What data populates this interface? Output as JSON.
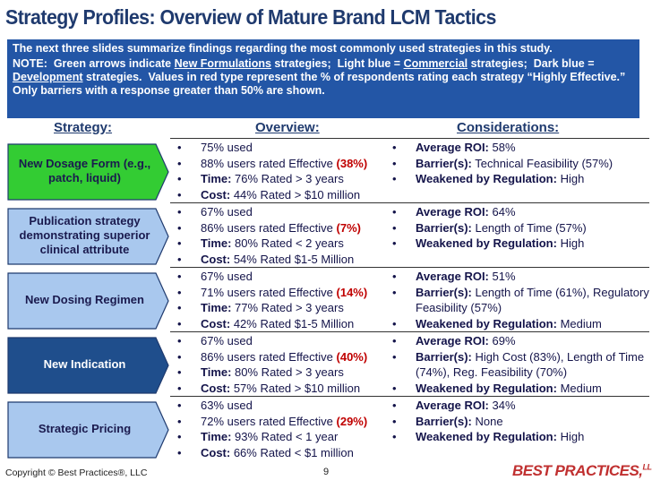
{
  "title": "Strategy Profiles: Overview of Mature Brand LCM Tactics",
  "intro": {
    "summary": "The next three slides summarize findings regarding the most commonly used strategies in this study.",
    "note": [
      {
        "text": "NOTE:  Green arrows indicate "
      },
      {
        "text": "New Formulations",
        "style": "u"
      },
      {
        "text": " strategies;  Light blue = "
      },
      {
        "text": "Commercial",
        "style": "u"
      },
      {
        "text": " strategies;  Dark blue = "
      },
      {
        "text": "Development",
        "style": "u"
      },
      {
        "text": " strategies.  Values in red type represent the % of respondents rating each strategy “Highly Effective.”  Only barriers with a response greater than 50% are shown."
      }
    ]
  },
  "columns": [
    "Strategy:",
    "Overview:",
    "Considerations:"
  ],
  "rows": [
    {
      "strategy": "New Dosage Form (e.g., patch, liquid)",
      "fill": "#33cc33",
      "text_color": "#1a1a4e",
      "overview": [
        [
          {
            "text": "75% used"
          }
        ],
        [
          {
            "text": "88% users rated Effective "
          },
          {
            "text": "(38%)",
            "style": "r"
          }
        ],
        [
          {
            "text": "Time:",
            "style": "b"
          },
          {
            "text": " 76% Rated > 3 years"
          }
        ],
        [
          {
            "text": "Cost:",
            "style": "b"
          },
          {
            "text": " 44% Rated > $10 million"
          }
        ]
      ],
      "considerations": [
        [
          {
            "text": "Average ROI:",
            "style": "b"
          },
          {
            "text": " 58%"
          }
        ],
        [
          {
            "text": "Barrier(s):",
            "style": "b"
          },
          {
            "text": " Technical Feasibility (57%)"
          }
        ],
        [
          {
            "text": "Weakened by Regulation:",
            "style": "b"
          },
          {
            "text": " High"
          }
        ]
      ]
    },
    {
      "strategy": "Publication strategy demonstrating superior clinical attribute",
      "fill": "#a9c8ee",
      "text_color": "#1a1a4e",
      "overview": [
        [
          {
            "text": "67% used"
          }
        ],
        [
          {
            "text": "86% users rated Effective "
          },
          {
            "text": "(7%)",
            "style": "r"
          }
        ],
        [
          {
            "text": "Time:",
            "style": "b"
          },
          {
            "text": " 80% Rated < 2 years"
          }
        ],
        [
          {
            "text": "Cost:",
            "style": "b"
          },
          {
            "text": " 54% Rated $1-5 Million"
          }
        ]
      ],
      "considerations": [
        [
          {
            "text": "Average ROI:",
            "style": "b"
          },
          {
            "text": " 64%"
          }
        ],
        [
          {
            "text": "Barrier(s):",
            "style": "b"
          },
          {
            "text": " Length of Time (57%)"
          }
        ],
        [
          {
            "text": "Weakened by Regulation:",
            "style": "b"
          },
          {
            "text": " High"
          }
        ]
      ]
    },
    {
      "strategy": "New Dosing Regimen",
      "fill": "#a9c8ee",
      "text_color": "#1a1a4e",
      "overview": [
        [
          {
            "text": "67% used"
          }
        ],
        [
          {
            "text": "71% users rated Effective "
          },
          {
            "text": "(14%)",
            "style": "r"
          }
        ],
        [
          {
            "text": "Time:",
            "style": "b"
          },
          {
            "text": " 77% Rated > 3 years"
          }
        ],
        [
          {
            "text": "Cost:",
            "style": "b"
          },
          {
            "text": " 42% Rated $1-5 Million"
          }
        ]
      ],
      "considerations": [
        [
          {
            "text": "Average ROI:",
            "style": "b"
          },
          {
            "text": " 51%"
          }
        ],
        [
          {
            "text": "Barrier(s):",
            "style": "b"
          },
          {
            "text": " Length of Time (61%), Regulatory Feasibility (57%)"
          }
        ],
        [
          {
            "text": "Weakened by Regulation:",
            "style": "b"
          },
          {
            "text": " Medium"
          }
        ]
      ]
    },
    {
      "strategy": "New Indication",
      "fill": "#1f4e8c",
      "text_color": "#ffffff",
      "overview": [
        [
          {
            "text": "67% used"
          }
        ],
        [
          {
            "text": "86% users rated Effective "
          },
          {
            "text": "(40%)",
            "style": "r"
          }
        ],
        [
          {
            "text": "Time:",
            "style": "b"
          },
          {
            "text": " 80% Rated > 3 years"
          }
        ],
        [
          {
            "text": "Cost:",
            "style": "b"
          },
          {
            "text": " 57% Rated > $10 million"
          }
        ]
      ],
      "considerations": [
        [
          {
            "text": "Average ROI:",
            "style": "b"
          },
          {
            "text": " 69%"
          }
        ],
        [
          {
            "text": "Barrier(s):",
            "style": "b"
          },
          {
            "text": " High Cost (83%), Length of Time (74%), Reg. Feasibility (70%)"
          }
        ],
        [
          {
            "text": "Weakened by Regulation:",
            "style": "b"
          },
          {
            "text": " Medium"
          }
        ]
      ]
    },
    {
      "strategy": "Strategic Pricing",
      "fill": "#a9c8ee",
      "text_color": "#1a1a4e",
      "overview": [
        [
          {
            "text": "63% used"
          }
        ],
        [
          {
            "text": "72% users rated Effective "
          },
          {
            "text": "(29%)",
            "style": "r"
          }
        ],
        [
          {
            "text": "Time:",
            "style": "b"
          },
          {
            "text": " 93% Rated < 1 year"
          }
        ],
        [
          {
            "text": "Cost:",
            "style": "b"
          },
          {
            "text": " 66% Rated < $1 million"
          }
        ]
      ],
      "considerations": [
        [
          {
            "text": "Average ROI:",
            "style": "b"
          },
          {
            "text": " 34%"
          }
        ],
        [
          {
            "text": "Barrier(s):",
            "style": "b"
          },
          {
            "text": " None"
          }
        ],
        [
          {
            "text": "Weakened by Regulation:",
            "style": "b"
          },
          {
            "text": " High"
          }
        ]
      ]
    }
  ],
  "footer": {
    "copyright": "Copyright ©  Best Practices®, LLC",
    "page": "9",
    "logo": "BEST PRACTICES,",
    "logo_suffix": "LLC"
  }
}
